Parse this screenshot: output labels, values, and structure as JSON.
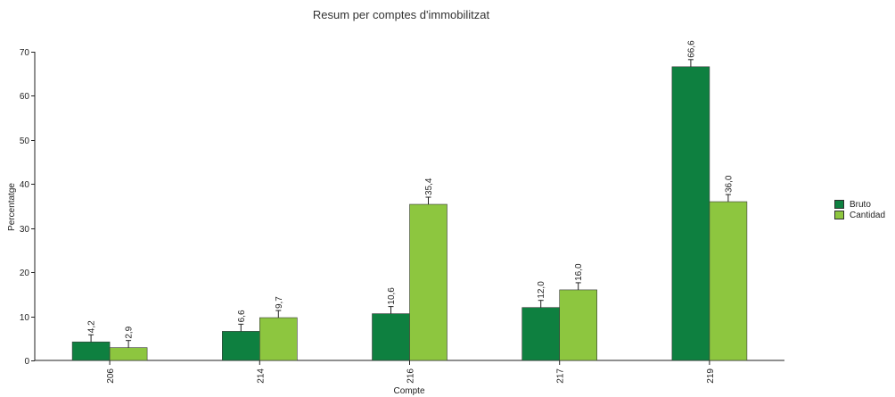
{
  "chart_data": {
    "type": "bar",
    "title": "Resum per comptes d'immobilitzat",
    "xlabel": "Compte",
    "ylabel": "Percentatge",
    "categories": [
      "206",
      "214",
      "216",
      "217",
      "219"
    ],
    "series": [
      {
        "name": "Bruto",
        "color": "#0e8040",
        "values": [
          4.2,
          6.6,
          10.6,
          12.0,
          66.6
        ],
        "labels": [
          "4,2",
          "6,6",
          "10,6",
          "12,0",
          "66,6"
        ]
      },
      {
        "name": "Cantidad",
        "color": "#8dc63f",
        "values": [
          2.9,
          9.7,
          35.4,
          16.0,
          36.0
        ],
        "labels": [
          "2,9",
          "9,7",
          "35,4",
          "16,0",
          "36,0"
        ]
      }
    ],
    "ylim": [
      0,
      70
    ],
    "yticks": [
      0,
      10,
      20,
      30,
      40,
      50,
      60,
      70
    ],
    "legend_position": "right",
    "error_bars": true,
    "grid": false
  }
}
